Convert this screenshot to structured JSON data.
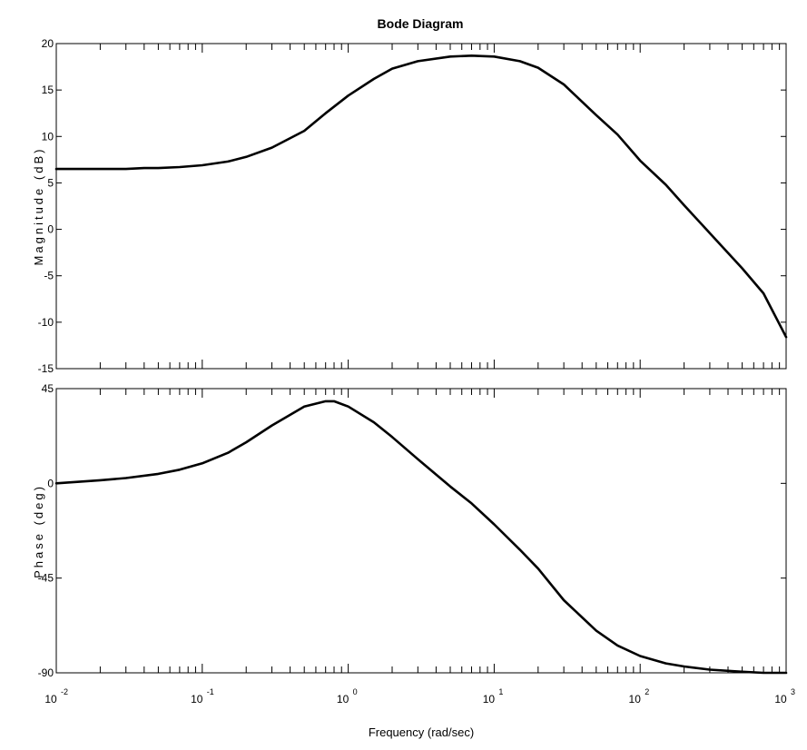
{
  "chart_data": {
    "type": "line",
    "title": "Bode Diagram",
    "xlabel": "Frequency  (rad/sec)",
    "xscale": "log",
    "xlim": [
      0.01,
      1000
    ],
    "x_ticks": [
      {
        "value": 0.01,
        "base": "10",
        "exp": "-2"
      },
      {
        "value": 0.1,
        "base": "10",
        "exp": "-1"
      },
      {
        "value": 1,
        "base": "10",
        "exp": "0"
      },
      {
        "value": 10,
        "base": "10",
        "exp": "1"
      },
      {
        "value": 100,
        "base": "10",
        "exp": "2"
      },
      {
        "value": 1000,
        "base": "10",
        "exp": "3"
      }
    ],
    "grid": false,
    "subplots": [
      {
        "name": "magnitude",
        "ylabel": "Magnitude (dB)",
        "ylim": [
          -15,
          20
        ],
        "yticks": [
          20,
          15,
          10,
          5,
          0,
          -5,
          -10,
          -15
        ],
        "series": [
          {
            "x": [
              0.01,
              0.02,
              0.03,
              0.04,
              0.05,
              0.07,
              0.1,
              0.15,
              0.2,
              0.3,
              0.5,
              0.7,
              1,
              1.5,
              2,
              3,
              5,
              7,
              10,
              15,
              20,
              30,
              50,
              70,
              100,
              150,
              200,
              300,
              500,
              700,
              1000
            ],
            "y": [
              6.5,
              6.5,
              6.5,
              6.6,
              6.6,
              6.7,
              6.9,
              7.3,
              7.8,
              8.8,
              10.6,
              12.5,
              14.4,
              16.2,
              17.3,
              18.1,
              18.6,
              18.7,
              18.6,
              18.1,
              17.4,
              15.6,
              12.3,
              10.2,
              7.4,
              4.8,
              2.6,
              -0.4,
              -4.2,
              -6.9,
              -11.6
            ]
          }
        ]
      },
      {
        "name": "phase",
        "ylabel": "Phase (deg)",
        "ylim": [
          -90,
          45
        ],
        "yticks": [
          45,
          0,
          -45,
          -90
        ],
        "series": [
          {
            "x": [
              0.01,
              0.02,
              0.03,
              0.05,
              0.07,
              0.1,
              0.15,
              0.2,
              0.3,
              0.5,
              0.7,
              0.8,
              1,
              1.5,
              2,
              3,
              5,
              7,
              10,
              15,
              20,
              30,
              50,
              70,
              100,
              150,
              200,
              300,
              500,
              700,
              1000
            ],
            "y": [
              0,
              1.5,
              2.5,
              4.5,
              6.5,
              9.5,
              14.5,
              19.5,
              27.5,
              36.5,
              39,
              39,
              36.5,
              29,
              22,
              11.5,
              -1.5,
              -9.5,
              -19.5,
              -31.5,
              -40.5,
              -55.5,
              -70,
              -77,
              -82,
              -85.5,
              -87,
              -88.5,
              -89.5,
              -90,
              -90
            ]
          }
        ]
      }
    ]
  }
}
